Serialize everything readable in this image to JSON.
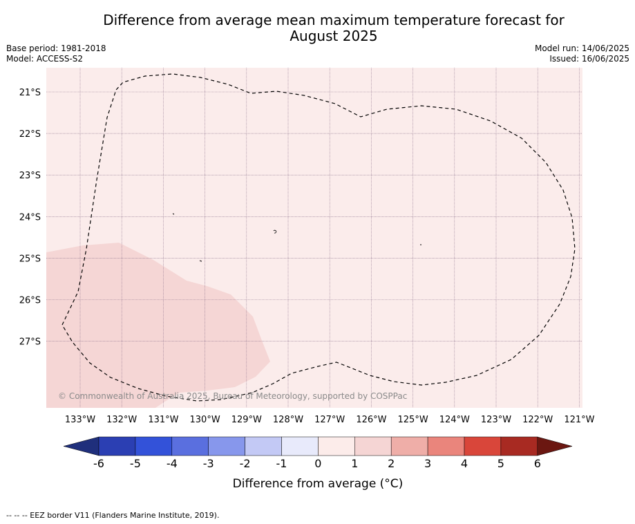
{
  "title_line1": "Difference from average mean maximum temperature forecast for",
  "title_line2": "August 2025",
  "base_period": "Base period: 1981-2018",
  "model": "Model: ACCESS-S2",
  "model_run": "Model run: 14/06/2025",
  "issued": "Issued: 16/06/2025",
  "copyright": "© Commonwealth of Australia 2025, Bureau of Meteorology, supported by COSPPac",
  "colorbar_label": "Difference from average (°C)",
  "colorbar_ticks": [
    "-6",
    "-5",
    "-4",
    "-3",
    "-2",
    "-1",
    "0",
    "1",
    "2",
    "3",
    "4",
    "5",
    "6"
  ],
  "colorbar_colors": [
    "#1f2f7c",
    "#2b3fb3",
    "#3352d9",
    "#5a6fdf",
    "#8797ec",
    "#c3c9f5",
    "#e8eafb",
    "#fcecea",
    "#f5d5d4",
    "#efaea8",
    "#ea857c",
    "#d9463a",
    "#a82a22",
    "#6b1711"
  ],
  "lat_labels": [
    "21°S",
    "22°S",
    "23°S",
    "24°S",
    "25°S",
    "26°S",
    "27°S"
  ],
  "lon_labels": [
    "133°W",
    "132°W",
    "131°W",
    "130°W",
    "129°W",
    "128°W",
    "127°W",
    "126°W",
    "125°W",
    "124°W",
    "123°W",
    "122°W",
    "121°W"
  ],
  "footer": "-- -- -- EEZ border V11 (Flanders Marine Institute, 2019).",
  "map_fill_base": "#fbeceb",
  "map_fill_anomaly": "#f5d6d5"
}
